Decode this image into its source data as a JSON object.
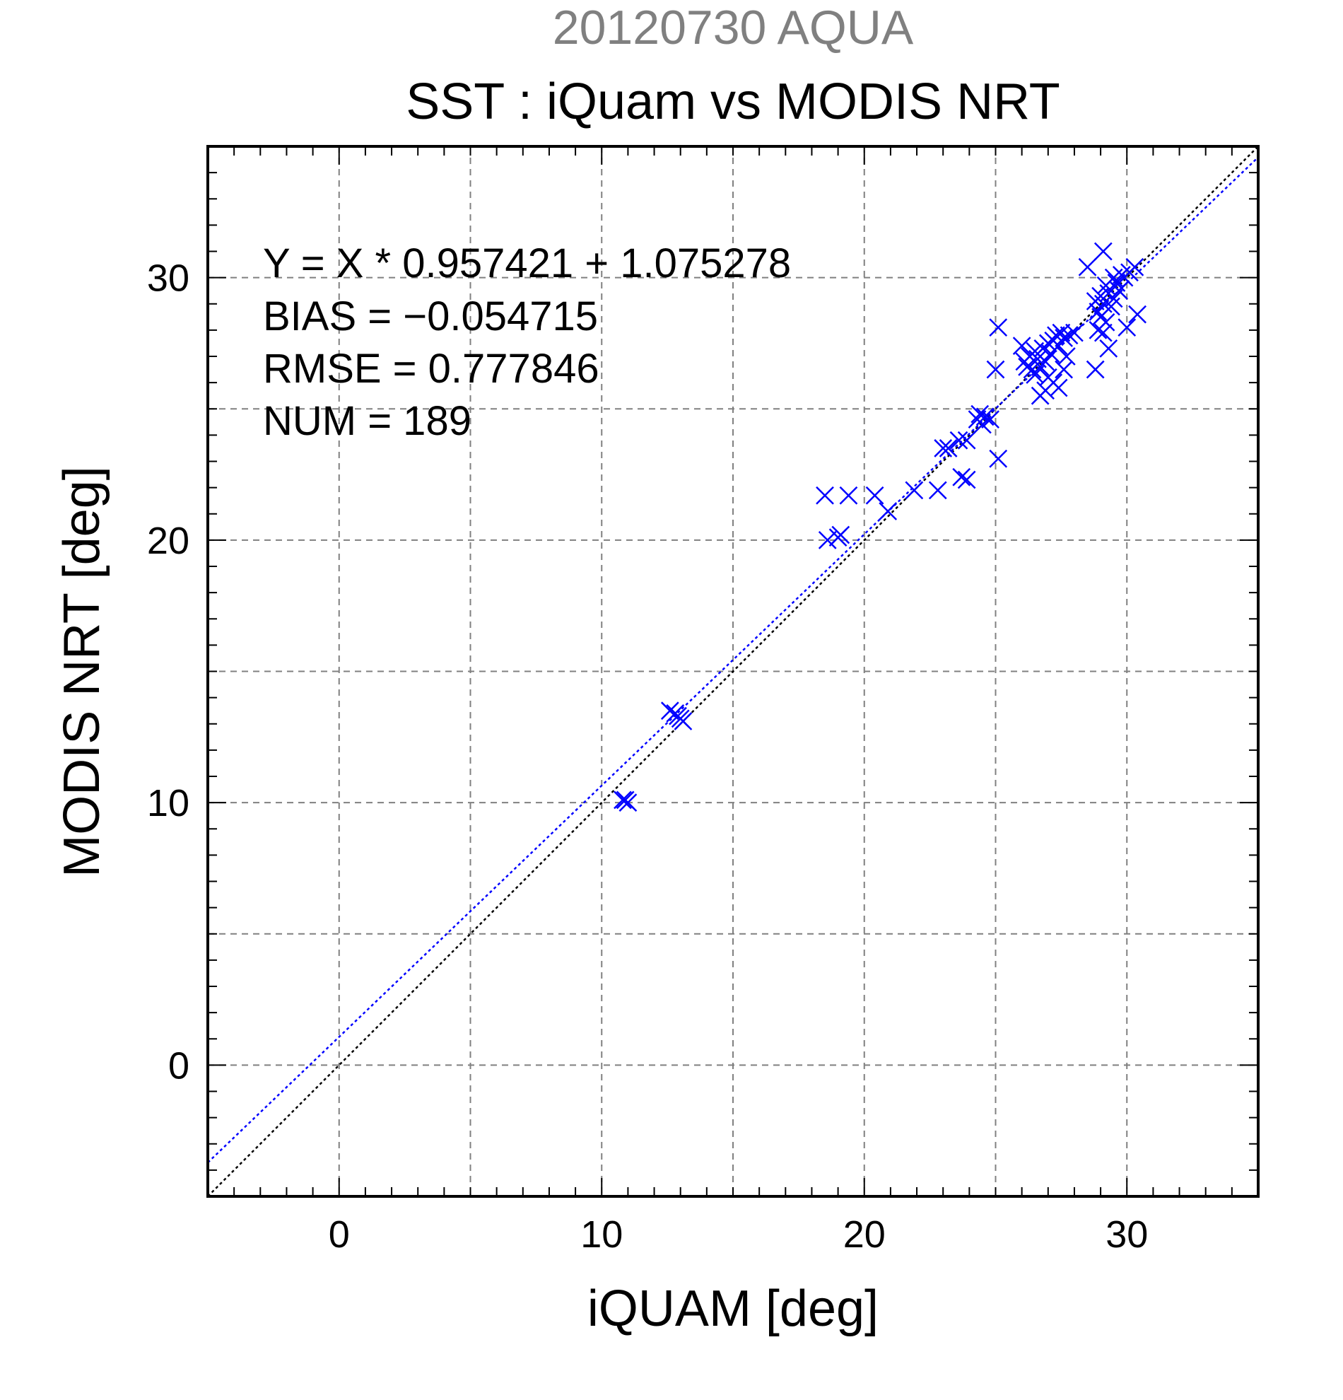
{
  "chart_data": {
    "type": "scatter",
    "title": "20120730 AQUA",
    "subtitle": "SST : iQuam vs MODIS NRT",
    "xlabel": "iQUAM [deg]",
    "ylabel": "MODIS NRT [deg]",
    "xlim": [
      -5,
      35
    ],
    "ylim": [
      -5,
      35
    ],
    "xticks": [
      0,
      10,
      20,
      30
    ],
    "yticks": [
      0,
      10,
      20,
      30
    ],
    "grid": true,
    "colors": {
      "points": "#0000ff",
      "fit_line": "#0000ff",
      "identity_line": "#000000",
      "grid": "#808080",
      "title": "#808080"
    },
    "annotations": {
      "equation": "Y = X * 0.957421 + 1.075278",
      "bias": "BIAS = −0.054715",
      "rmse": "RMSE = 0.777846",
      "num": "NUM = 189"
    },
    "fit": {
      "slope": 0.957421,
      "intercept": 1.075278
    },
    "series": [
      {
        "marker": "x",
        "points": [
          [
            10.8,
            10.1
          ],
          [
            10.9,
            10.1
          ],
          [
            11.0,
            10.0
          ],
          [
            12.6,
            13.5
          ],
          [
            12.8,
            13.4
          ],
          [
            12.9,
            13.3
          ],
          [
            13.0,
            13.2
          ],
          [
            13.1,
            13.1
          ],
          [
            18.5,
            21.7
          ],
          [
            18.6,
            20.0
          ],
          [
            19.0,
            20.1
          ],
          [
            19.1,
            20.2
          ],
          [
            19.4,
            21.7
          ],
          [
            20.4,
            21.7
          ],
          [
            20.9,
            21.1
          ],
          [
            21.9,
            21.9
          ],
          [
            22.8,
            21.9
          ],
          [
            23.0,
            23.5
          ],
          [
            23.2,
            23.5
          ],
          [
            23.6,
            23.8
          ],
          [
            23.7,
            22.4
          ],
          [
            23.9,
            22.3
          ],
          [
            23.9,
            23.8
          ],
          [
            24.3,
            24.6
          ],
          [
            24.4,
            24.8
          ],
          [
            24.5,
            24.4
          ],
          [
            24.6,
            24.7
          ],
          [
            24.8,
            24.6
          ],
          [
            25.1,
            28.1
          ],
          [
            25.0,
            26.5
          ],
          [
            25.1,
            23.1
          ],
          [
            26.0,
            27.4
          ],
          [
            26.1,
            26.8
          ],
          [
            26.2,
            26.6
          ],
          [
            26.3,
            27.0
          ],
          [
            26.4,
            26.5
          ],
          [
            26.5,
            27.2
          ],
          [
            26.5,
            26.3
          ],
          [
            26.6,
            26.9
          ],
          [
            26.7,
            26.6
          ],
          [
            26.7,
            25.5
          ],
          [
            26.8,
            27.3
          ],
          [
            26.9,
            26.8
          ],
          [
            26.9,
            25.7
          ],
          [
            27.0,
            27.5
          ],
          [
            27.0,
            26.2
          ],
          [
            27.1,
            27.1
          ],
          [
            27.2,
            27.6
          ],
          [
            27.2,
            26.0
          ],
          [
            27.3,
            27.8
          ],
          [
            27.4,
            27.4
          ],
          [
            27.4,
            25.8
          ],
          [
            27.5,
            27.9
          ],
          [
            27.6,
            27.7
          ],
          [
            27.6,
            26.5
          ],
          [
            27.7,
            27.0
          ],
          [
            27.8,
            27.8
          ],
          [
            28.0,
            27.9
          ],
          [
            28.5,
            30.4
          ],
          [
            28.8,
            29.1
          ],
          [
            28.8,
            26.5
          ],
          [
            28.9,
            28.7
          ],
          [
            28.9,
            28.0
          ],
          [
            29.0,
            29.3
          ],
          [
            29.0,
            28.5
          ],
          [
            29.1,
            31.0
          ],
          [
            29.1,
            29.0
          ],
          [
            29.1,
            27.9
          ],
          [
            29.2,
            29.7
          ],
          [
            29.2,
            28.3
          ],
          [
            29.3,
            29.4
          ],
          [
            29.3,
            27.3
          ],
          [
            29.4,
            28.9
          ],
          [
            29.5,
            30.0
          ],
          [
            29.5,
            29.2
          ],
          [
            29.6,
            29.8
          ],
          [
            29.7,
            29.5
          ],
          [
            29.8,
            30.1
          ],
          [
            29.9,
            30.0
          ],
          [
            30.0,
            28.1
          ],
          [
            30.1,
            30.2
          ],
          [
            30.3,
            30.4
          ],
          [
            30.4,
            28.6
          ]
        ]
      }
    ]
  }
}
